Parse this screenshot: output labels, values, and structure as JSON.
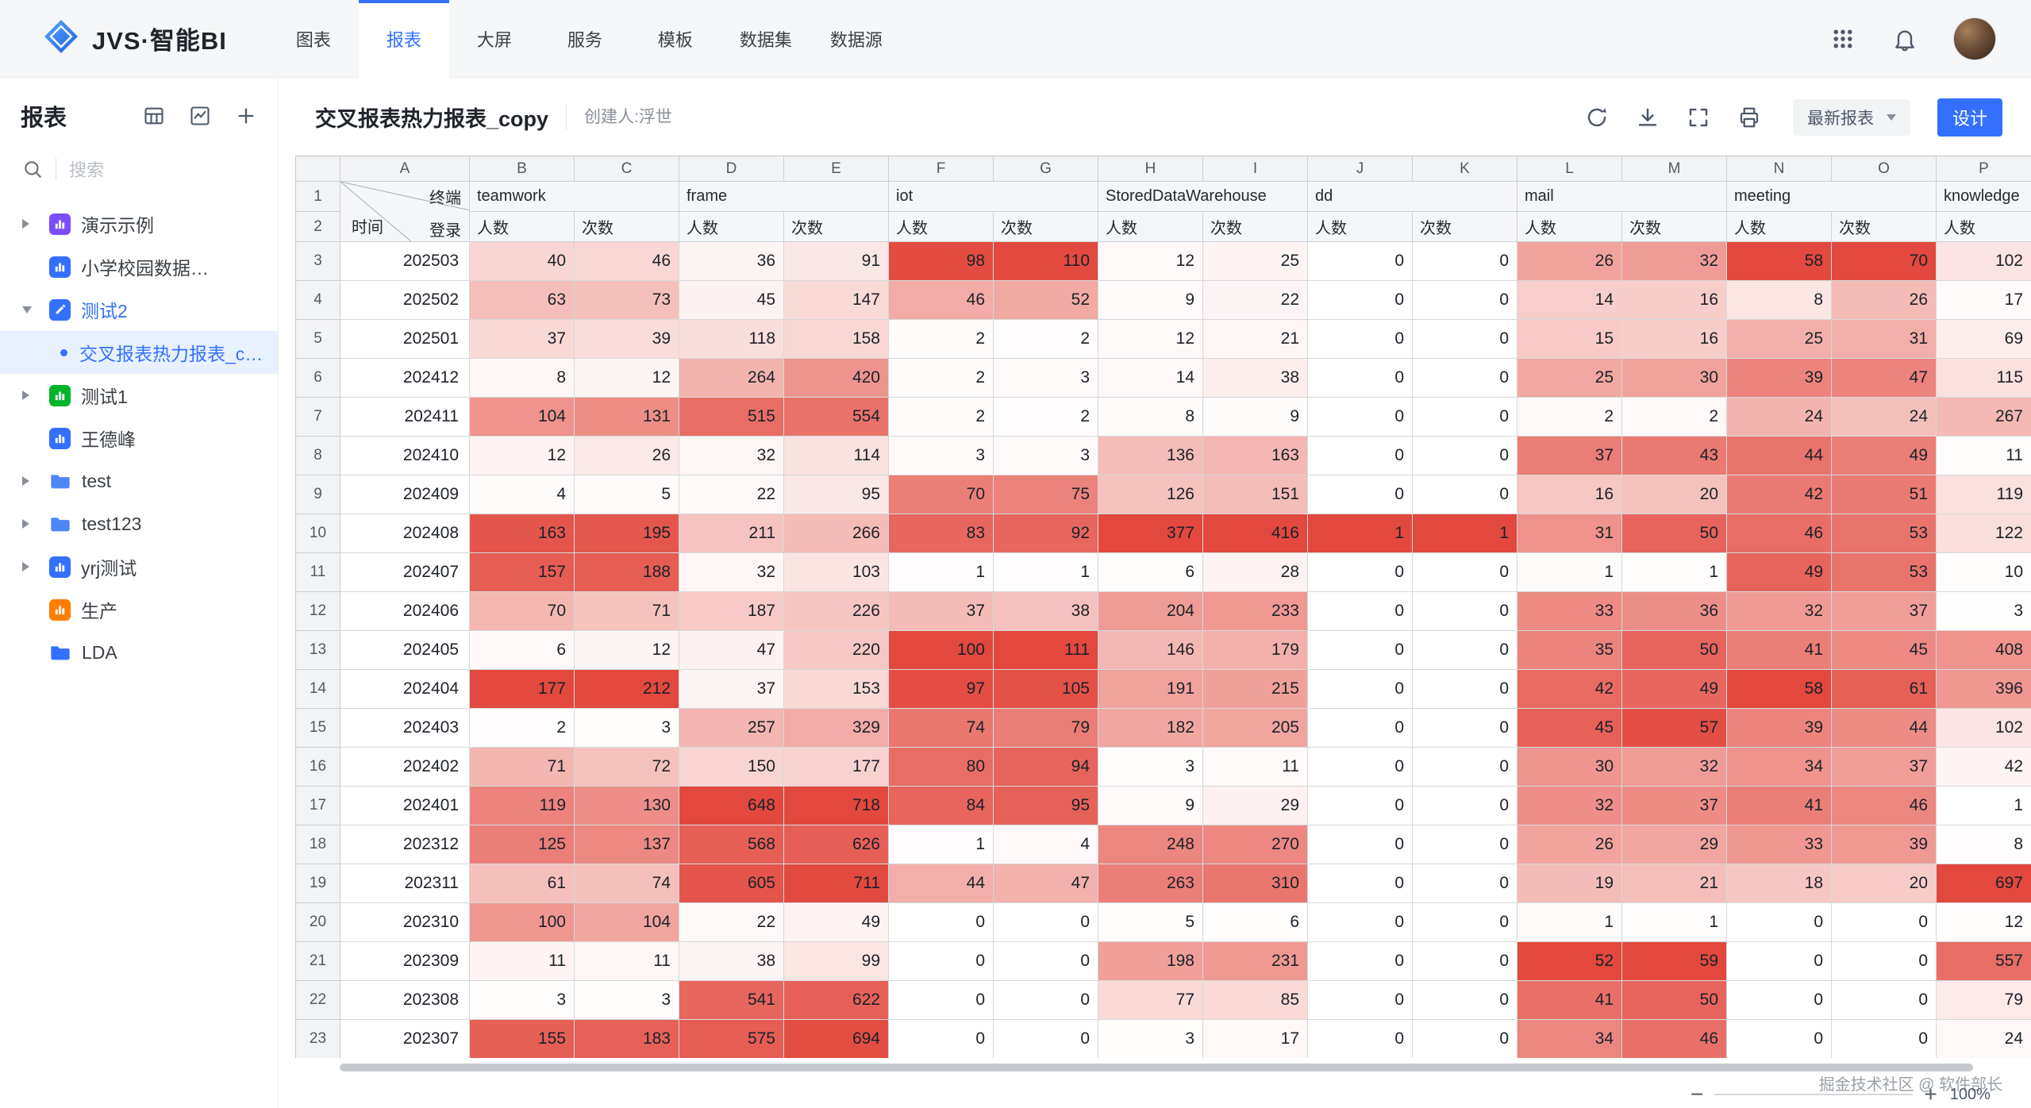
{
  "brand": {
    "logo_text": "JVS·智能BI"
  },
  "nav": {
    "items": [
      {
        "label": "图表",
        "active": false
      },
      {
        "label": "报表",
        "active": true
      },
      {
        "label": "大屏",
        "active": false
      },
      {
        "label": "服务",
        "active": false
      },
      {
        "label": "模板",
        "active": false
      },
      {
        "label": "数据集",
        "active": false
      },
      {
        "label": "数据源",
        "active": false
      }
    ]
  },
  "sidebar": {
    "title": "报表",
    "search_placeholder": "搜索",
    "items": [
      {
        "label": "演示示例",
        "icon": "chart",
        "icon_color": "#7b4dfa",
        "arrow": "right",
        "indent": 0,
        "selected": false,
        "blue_text": false
      },
      {
        "label": "小学校园数据…",
        "icon": "chart",
        "icon_color": "#3370ff",
        "arrow": "none",
        "indent": 0,
        "selected": false,
        "blue_text": false
      },
      {
        "label": "测试2",
        "icon": "edit",
        "icon_color": "#3370ff",
        "arrow": "down",
        "indent": 0,
        "selected": false,
        "blue_text": true
      },
      {
        "label": "交叉报表热力报表_c…",
        "icon": "dot",
        "icon_color": "#3370ff",
        "arrow": "none",
        "indent": 1,
        "selected": true,
        "blue_text": true
      },
      {
        "label": "测试1",
        "icon": "chart",
        "icon_color": "#00b42a",
        "arrow": "right",
        "indent": 0,
        "selected": false,
        "blue_text": false
      },
      {
        "label": "王德峰",
        "icon": "chart",
        "icon_color": "#3370ff",
        "arrow": "none",
        "indent": 0,
        "selected": false,
        "blue_text": false
      },
      {
        "label": "test",
        "icon": "folder",
        "icon_color": "#4e86f7",
        "arrow": "right",
        "indent": 0,
        "selected": false,
        "blue_text": false
      },
      {
        "label": "test123",
        "icon": "folder",
        "icon_color": "#4e86f7",
        "arrow": "right",
        "indent": 0,
        "selected": false,
        "blue_text": false
      },
      {
        "label": "yrj测试",
        "icon": "chart",
        "icon_color": "#3370ff",
        "arrow": "right",
        "indent": 0,
        "selected": false,
        "blue_text": false
      },
      {
        "label": "生产",
        "icon": "chart",
        "icon_color": "#ff7d00",
        "arrow": "none",
        "indent": 0,
        "selected": false,
        "blue_text": false
      },
      {
        "label": "LDA",
        "icon": "folder",
        "icon_color": "#3370ff",
        "arrow": "none",
        "indent": 0,
        "selected": false,
        "blue_text": false
      }
    ]
  },
  "toolbar": {
    "title": "交叉报表热力报表_copy",
    "creator": "创建人:浮世",
    "version_select": "最新报表",
    "design_button": "设计"
  },
  "footer": {
    "watermark": "掘金技术社区 @ 软件部长",
    "zoom_out": "−",
    "zoom_in": "+",
    "zoom_level": "100%"
  },
  "sheet": {
    "heat_max_color": "#e2483d",
    "col_letters": [
      "A",
      "B",
      "C",
      "D",
      "E",
      "F",
      "G",
      "H",
      "I",
      "J",
      "K",
      "L",
      "M",
      "N",
      "O",
      "P"
    ],
    "corner": {
      "top": "终端",
      "middle": "登录",
      "bottom": "时间"
    },
    "groups": [
      {
        "label": "teamwork",
        "span": 2
      },
      {
        "label": "frame",
        "span": 2
      },
      {
        "label": "iot",
        "span": 2
      },
      {
        "label": "StoredDataWarehouse",
        "span": 2
      },
      {
        "label": "dd",
        "span": 2
      },
      {
        "label": "mail",
        "span": 2
      },
      {
        "label": "meeting",
        "span": 2
      },
      {
        "label": "knowledge",
        "span": 1
      }
    ],
    "sub_headers": [
      "人数",
      "次数",
      "人数",
      "次数",
      "人数",
      "次数",
      "人数",
      "次数",
      "人数",
      "次数",
      "人数",
      "次数",
      "人数",
      "次数",
      "人数"
    ],
    "rows": [
      {
        "n": 3,
        "time": "202503",
        "v": [
          40,
          46,
          36,
          91,
          98,
          110,
          12,
          25,
          0,
          0,
          26,
          32,
          58,
          70,
          102
        ]
      },
      {
        "n": 4,
        "time": "202502",
        "v": [
          63,
          73,
          45,
          147,
          46,
          52,
          9,
          22,
          0,
          0,
          14,
          16,
          8,
          26,
          17
        ]
      },
      {
        "n": 5,
        "time": "202501",
        "v": [
          37,
          39,
          118,
          158,
          2,
          2,
          12,
          21,
          0,
          0,
          15,
          16,
          25,
          31,
          69
        ]
      },
      {
        "n": 6,
        "time": "202412",
        "v": [
          8,
          12,
          264,
          420,
          2,
          3,
          14,
          38,
          0,
          0,
          25,
          30,
          39,
          47,
          115
        ]
      },
      {
        "n": 7,
        "time": "202411",
        "v": [
          104,
          131,
          515,
          554,
          2,
          2,
          8,
          9,
          0,
          0,
          2,
          2,
          24,
          24,
          267
        ]
      },
      {
        "n": 8,
        "time": "202410",
        "v": [
          12,
          26,
          32,
          114,
          3,
          3,
          136,
          163,
          0,
          0,
          37,
          43,
          44,
          49,
          11
        ]
      },
      {
        "n": 9,
        "time": "202409",
        "v": [
          4,
          5,
          22,
          95,
          70,
          75,
          126,
          151,
          0,
          0,
          16,
          20,
          42,
          51,
          119
        ]
      },
      {
        "n": 10,
        "time": "202408",
        "v": [
          163,
          195,
          211,
          266,
          83,
          92,
          377,
          416,
          1,
          1,
          31,
          50,
          46,
          53,
          122
        ]
      },
      {
        "n": 11,
        "time": "202407",
        "v": [
          157,
          188,
          32,
          103,
          1,
          1,
          6,
          28,
          0,
          0,
          1,
          1,
          49,
          53,
          10
        ]
      },
      {
        "n": 12,
        "time": "202406",
        "v": [
          70,
          71,
          187,
          226,
          37,
          38,
          204,
          233,
          0,
          0,
          33,
          36,
          32,
          37,
          3
        ]
      },
      {
        "n": 13,
        "time": "202405",
        "v": [
          6,
          12,
          47,
          220,
          100,
          111,
          146,
          179,
          0,
          0,
          35,
          50,
          41,
          45,
          408
        ]
      },
      {
        "n": 14,
        "time": "202404",
        "v": [
          177,
          212,
          37,
          153,
          97,
          105,
          191,
          215,
          0,
          0,
          42,
          49,
          58,
          61,
          396
        ]
      },
      {
        "n": 15,
        "time": "202403",
        "v": [
          2,
          3,
          257,
          329,
          74,
          79,
          182,
          205,
          0,
          0,
          45,
          57,
          39,
          44,
          102
        ]
      },
      {
        "n": 16,
        "time": "202402",
        "v": [
          71,
          72,
          150,
          177,
          80,
          94,
          3,
          11,
          0,
          0,
          30,
          32,
          34,
          37,
          42
        ]
      },
      {
        "n": 17,
        "time": "202401",
        "v": [
          119,
          130,
          648,
          718,
          84,
          95,
          9,
          29,
          0,
          0,
          32,
          37,
          41,
          46,
          1
        ]
      },
      {
        "n": 18,
        "time": "202312",
        "v": [
          125,
          137,
          568,
          626,
          1,
          4,
          248,
          270,
          0,
          0,
          26,
          29,
          33,
          39,
          8
        ]
      },
      {
        "n": 19,
        "time": "202311",
        "v": [
          61,
          74,
          605,
          711,
          44,
          47,
          263,
          310,
          0,
          0,
          19,
          21,
          18,
          20,
          697
        ]
      },
      {
        "n": 20,
        "time": "202310",
        "v": [
          100,
          104,
          22,
          49,
          0,
          0,
          5,
          6,
          0,
          0,
          1,
          1,
          0,
          0,
          12
        ]
      },
      {
        "n": 21,
        "time": "202309",
        "v": [
          11,
          11,
          38,
          99,
          0,
          0,
          198,
          231,
          0,
          0,
          52,
          59,
          0,
          0,
          557
        ]
      },
      {
        "n": 22,
        "time": "202308",
        "v": [
          3,
          3,
          541,
          622,
          0,
          0,
          77,
          85,
          0,
          0,
          41,
          50,
          0,
          0,
          79
        ]
      },
      {
        "n": 23,
        "time": "202307",
        "v": [
          155,
          183,
          575,
          694,
          0,
          0,
          3,
          17,
          0,
          0,
          34,
          46,
          0,
          0,
          24
        ]
      }
    ]
  }
}
